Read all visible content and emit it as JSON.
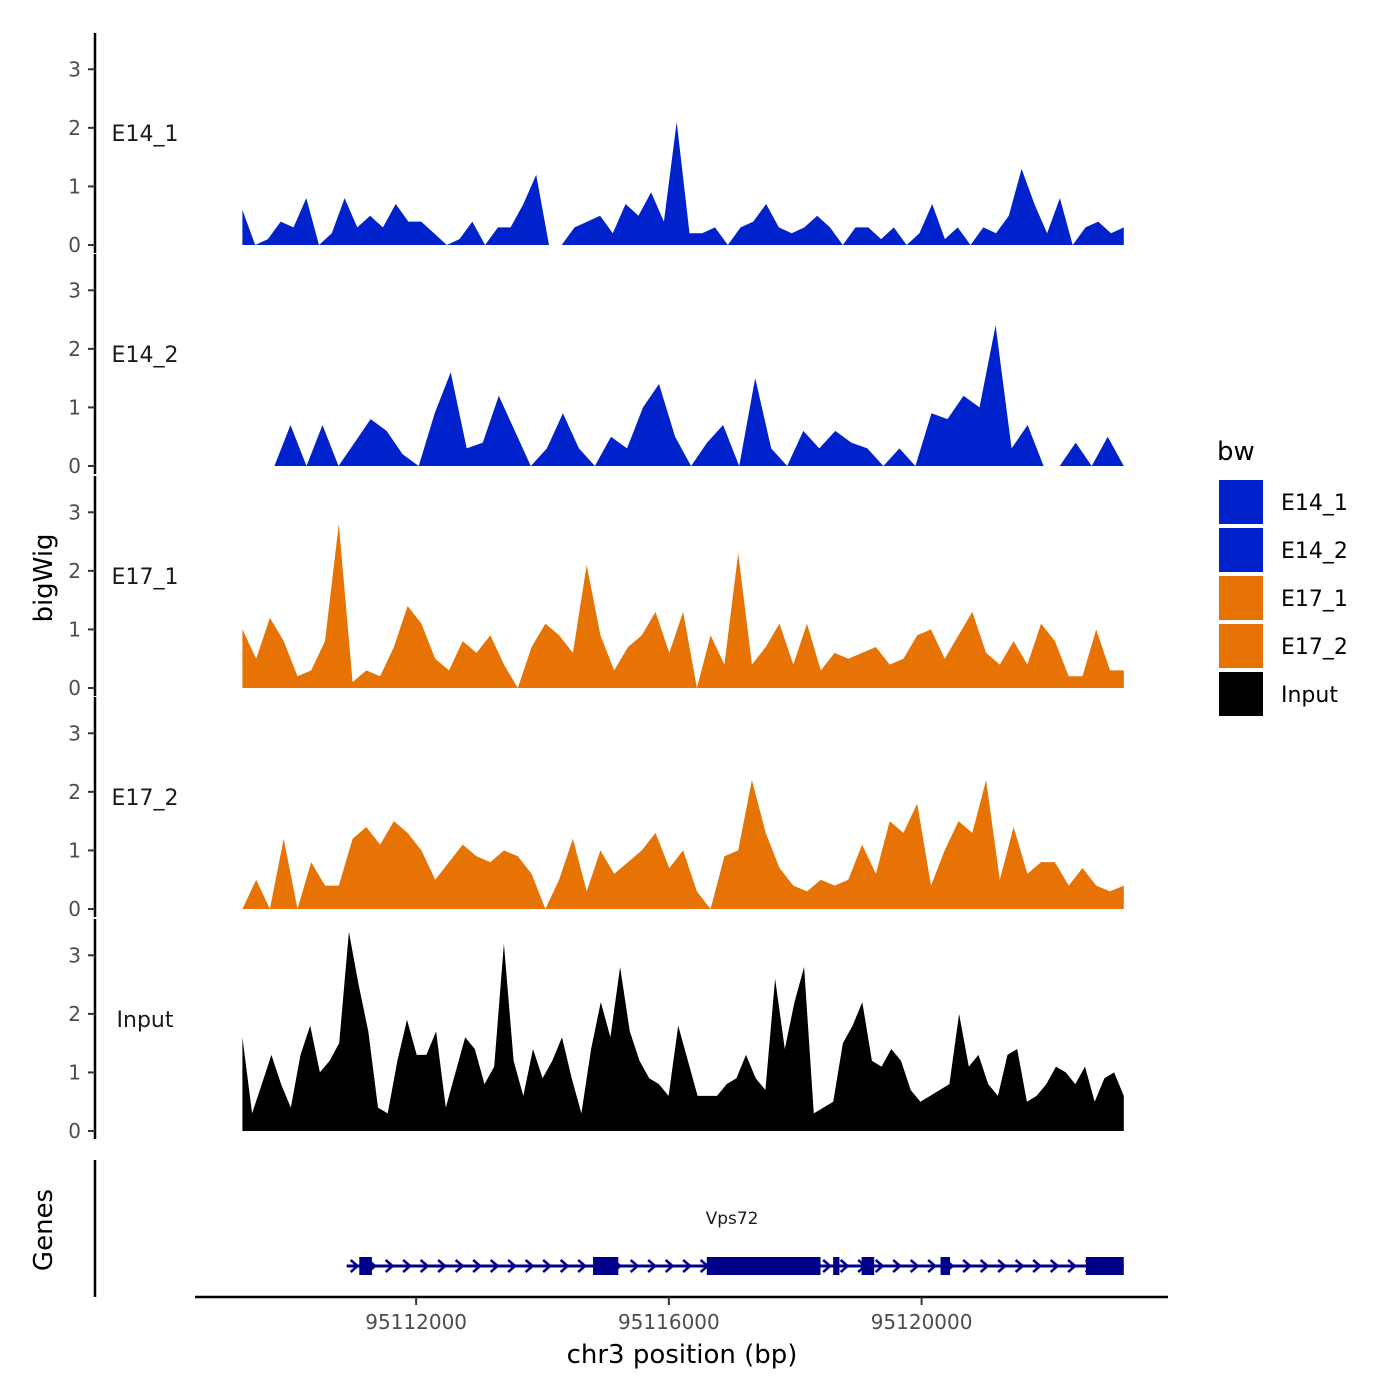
{
  "chart_data": {
    "type": "area",
    "description_axis": {
      "y_title": "bigWig",
      "x_title": "chr3 position (bp)",
      "x_ticks": [
        95112000,
        95116000,
        95120000
      ],
      "x_tick_labels": [
        "95112000",
        "95116000",
        "95120000"
      ],
      "xlim": [
        95108500,
        95123900
      ],
      "y_ticks": [
        0,
        1,
        2,
        3
      ],
      "y_tick_labels": [
        "0",
        "1",
        "2",
        "3"
      ],
      "ylim": [
        0,
        3.5
      ]
    },
    "legend": {
      "title": "bw",
      "entries": [
        {
          "name": "E14_1",
          "color": "#0022CC"
        },
        {
          "name": "E14_2",
          "color": "#0022CC"
        },
        {
          "name": "E17_1",
          "color": "#E87305"
        },
        {
          "name": "E17_2",
          "color": "#E87305"
        },
        {
          "name": "Input",
          "color": "#000000"
        }
      ]
    },
    "x_range": [
      95109250,
      95123200
    ],
    "series": [
      {
        "name": "E14_1",
        "color": "#0022CC",
        "values": [
          0.6,
          0.0,
          0.1,
          0.4,
          0.3,
          0.8,
          0.0,
          0.2,
          0.8,
          0.3,
          0.5,
          0.3,
          0.7,
          0.4,
          0.4,
          0.2,
          0.0,
          0.1,
          0.4,
          0.0,
          0.3,
          0.3,
          0.7,
          1.2,
          0.0,
          0.0,
          0.3,
          0.4,
          0.5,
          0.2,
          0.7,
          0.5,
          0.9,
          0.4,
          2.1,
          0.2,
          0.2,
          0.3,
          0.0,
          0.3,
          0.4,
          0.7,
          0.3,
          0.2,
          0.3,
          0.5,
          0.3,
          0.0,
          0.3,
          0.3,
          0.1,
          0.3,
          0.0,
          0.2,
          0.7,
          0.1,
          0.3,
          0.0,
          0.3,
          0.2,
          0.5,
          1.3,
          0.7,
          0.2,
          0.8,
          0.0,
          0.3,
          0.4,
          0.2,
          0.3
        ]
      },
      {
        "name": "E14_2",
        "color": "#0022CC",
        "values": [
          0.0,
          0.0,
          0.0,
          0.7,
          0.0,
          0.7,
          0.0,
          0.4,
          0.8,
          0.6,
          0.2,
          0.0,
          0.9,
          1.6,
          0.3,
          0.4,
          1.2,
          0.6,
          0.0,
          0.3,
          0.9,
          0.3,
          0.0,
          0.5,
          0.3,
          1.0,
          1.4,
          0.5,
          0.0,
          0.4,
          0.7,
          0.0,
          1.5,
          0.3,
          0.0,
          0.6,
          0.3,
          0.6,
          0.4,
          0.3,
          0.0,
          0.3,
          0.0,
          0.9,
          0.8,
          1.2,
          1.0,
          2.4,
          0.3,
          0.7,
          0.0,
          0.0,
          0.4,
          0.0,
          0.5,
          0.0
        ]
      },
      {
        "name": "E17_1",
        "color": "#E87305",
        "values": [
          1.0,
          0.5,
          1.2,
          0.8,
          0.2,
          0.3,
          0.8,
          2.8,
          0.1,
          0.3,
          0.2,
          0.7,
          1.4,
          1.1,
          0.5,
          0.3,
          0.8,
          0.6,
          0.9,
          0.4,
          0.0,
          0.7,
          1.1,
          0.9,
          0.6,
          2.1,
          0.9,
          0.3,
          0.7,
          0.9,
          1.3,
          0.6,
          1.3,
          0.0,
          0.9,
          0.4,
          2.3,
          0.4,
          0.7,
          1.1,
          0.4,
          1.1,
          0.3,
          0.6,
          0.5,
          0.6,
          0.7,
          0.4,
          0.5,
          0.9,
          1.0,
          0.5,
          0.9,
          1.3,
          0.6,
          0.4,
          0.8,
          0.4,
          1.1,
          0.8,
          0.2,
          0.2,
          1.0,
          0.3,
          0.3
        ]
      },
      {
        "name": "E17_2",
        "color": "#E87305",
        "values": [
          0.0,
          0.5,
          0.0,
          1.2,
          0.0,
          0.8,
          0.4,
          0.4,
          1.2,
          1.4,
          1.1,
          1.5,
          1.3,
          1.0,
          0.5,
          0.8,
          1.1,
          0.9,
          0.8,
          1.0,
          0.9,
          0.6,
          0.0,
          0.5,
          1.2,
          0.3,
          1.0,
          0.6,
          0.8,
          1.0,
          1.3,
          0.7,
          1.0,
          0.3,
          0.0,
          0.9,
          1.0,
          2.2,
          1.3,
          0.7,
          0.4,
          0.3,
          0.5,
          0.4,
          0.5,
          1.1,
          0.6,
          1.5,
          1.3,
          1.8,
          0.4,
          1.0,
          1.5,
          1.3,
          2.2,
          0.5,
          1.4,
          0.6,
          0.8,
          0.8,
          0.4,
          0.7,
          0.4,
          0.3,
          0.4
        ]
      },
      {
        "name": "Input",
        "color": "#000000",
        "values": [
          1.6,
          0.3,
          0.8,
          1.3,
          0.8,
          0.4,
          1.3,
          1.8,
          1.0,
          1.2,
          1.5,
          3.4,
          2.5,
          1.7,
          0.4,
          0.3,
          1.2,
          1.9,
          1.3,
          1.3,
          1.7,
          0.4,
          1.0,
          1.6,
          1.4,
          0.8,
          1.1,
          3.2,
          1.2,
          0.6,
          1.4,
          0.9,
          1.2,
          1.6,
          0.9,
          0.3,
          1.4,
          2.2,
          1.6,
          2.8,
          1.7,
          1.2,
          0.9,
          0.8,
          0.6,
          1.8,
          1.2,
          0.6,
          0.6,
          0.6,
          0.8,
          0.9,
          1.3,
          0.9,
          0.7,
          2.6,
          1.4,
          2.2,
          2.8,
          0.3,
          0.4,
          0.5,
          1.5,
          1.8,
          2.2,
          1.2,
          1.1,
          1.4,
          1.2,
          0.7,
          0.5,
          0.6,
          0.7,
          0.8,
          2.0,
          1.1,
          1.3,
          0.8,
          0.6,
          1.3,
          1.4,
          0.5,
          0.6,
          0.8,
          1.1,
          1.0,
          0.8,
          1.1,
          0.5,
          0.9,
          1.0,
          0.6
        ]
      }
    ],
    "genes": {
      "track_title": "Genes",
      "name": "Vps72",
      "start": 95110900,
      "end": 95123200,
      "strand": "+",
      "exons": [
        [
          95111100,
          95111300
        ],
        [
          95114800,
          95115200
        ],
        [
          95116600,
          95118400
        ],
        [
          95118600,
          95118700
        ],
        [
          95119050,
          95119250
        ],
        [
          95120300,
          95120450
        ],
        [
          95122600,
          95123200
        ]
      ]
    }
  }
}
